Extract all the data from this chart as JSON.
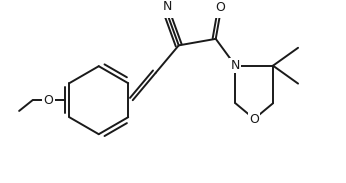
{
  "bg_color": "#ffffff",
  "line_color": "#1a1a1a",
  "lw": 1.4,
  "figsize": [
    3.46,
    1.83
  ],
  "dpi": 100,
  "xlim": [
    0,
    346
  ],
  "ylim": [
    0,
    183
  ]
}
